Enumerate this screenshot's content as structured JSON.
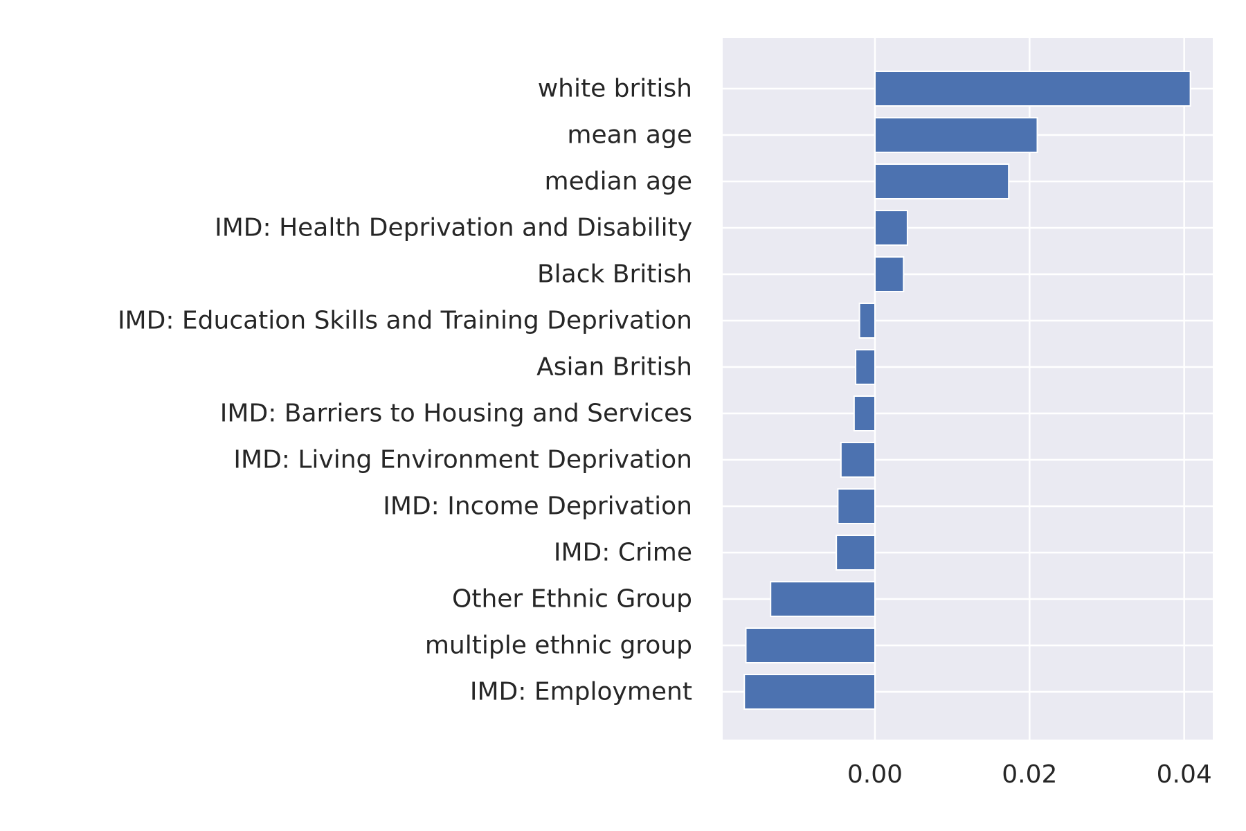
{
  "chart_data": {
    "type": "bar",
    "orientation": "horizontal",
    "title": "",
    "xlabel": "",
    "ylabel": "",
    "categories": [
      "white british",
      "mean age",
      "median age",
      "IMD: Health Deprivation and Disability",
      "Black British",
      "IMD: Education Skills and Training Deprivation",
      "Asian British",
      "IMD: Barriers to Housing and Services",
      "IMD: Living Environment Deprivation",
      "IMD: Income Deprivation",
      "IMD: Crime",
      "Other Ethnic Group",
      "multiple ethnic group",
      "IMD: Employment"
    ],
    "values": [
      0.0408,
      0.021,
      0.0173,
      0.0042,
      0.0037,
      -0.002,
      -0.0025,
      -0.0027,
      -0.0044,
      -0.0048,
      -0.005,
      -0.0135,
      -0.0167,
      -0.0169
    ],
    "xlim": [
      -0.0197,
      0.0437
    ],
    "xticks": [
      0.0,
      0.02,
      0.04
    ],
    "xtick_labels": [
      "0.00",
      "0.02",
      "0.04"
    ],
    "grid": true,
    "legend": "none",
    "colors": {
      "bar": "#4c72b0",
      "plot_background": "#eaeaf2",
      "grid": "#ffffff",
      "text": "#262626"
    }
  }
}
